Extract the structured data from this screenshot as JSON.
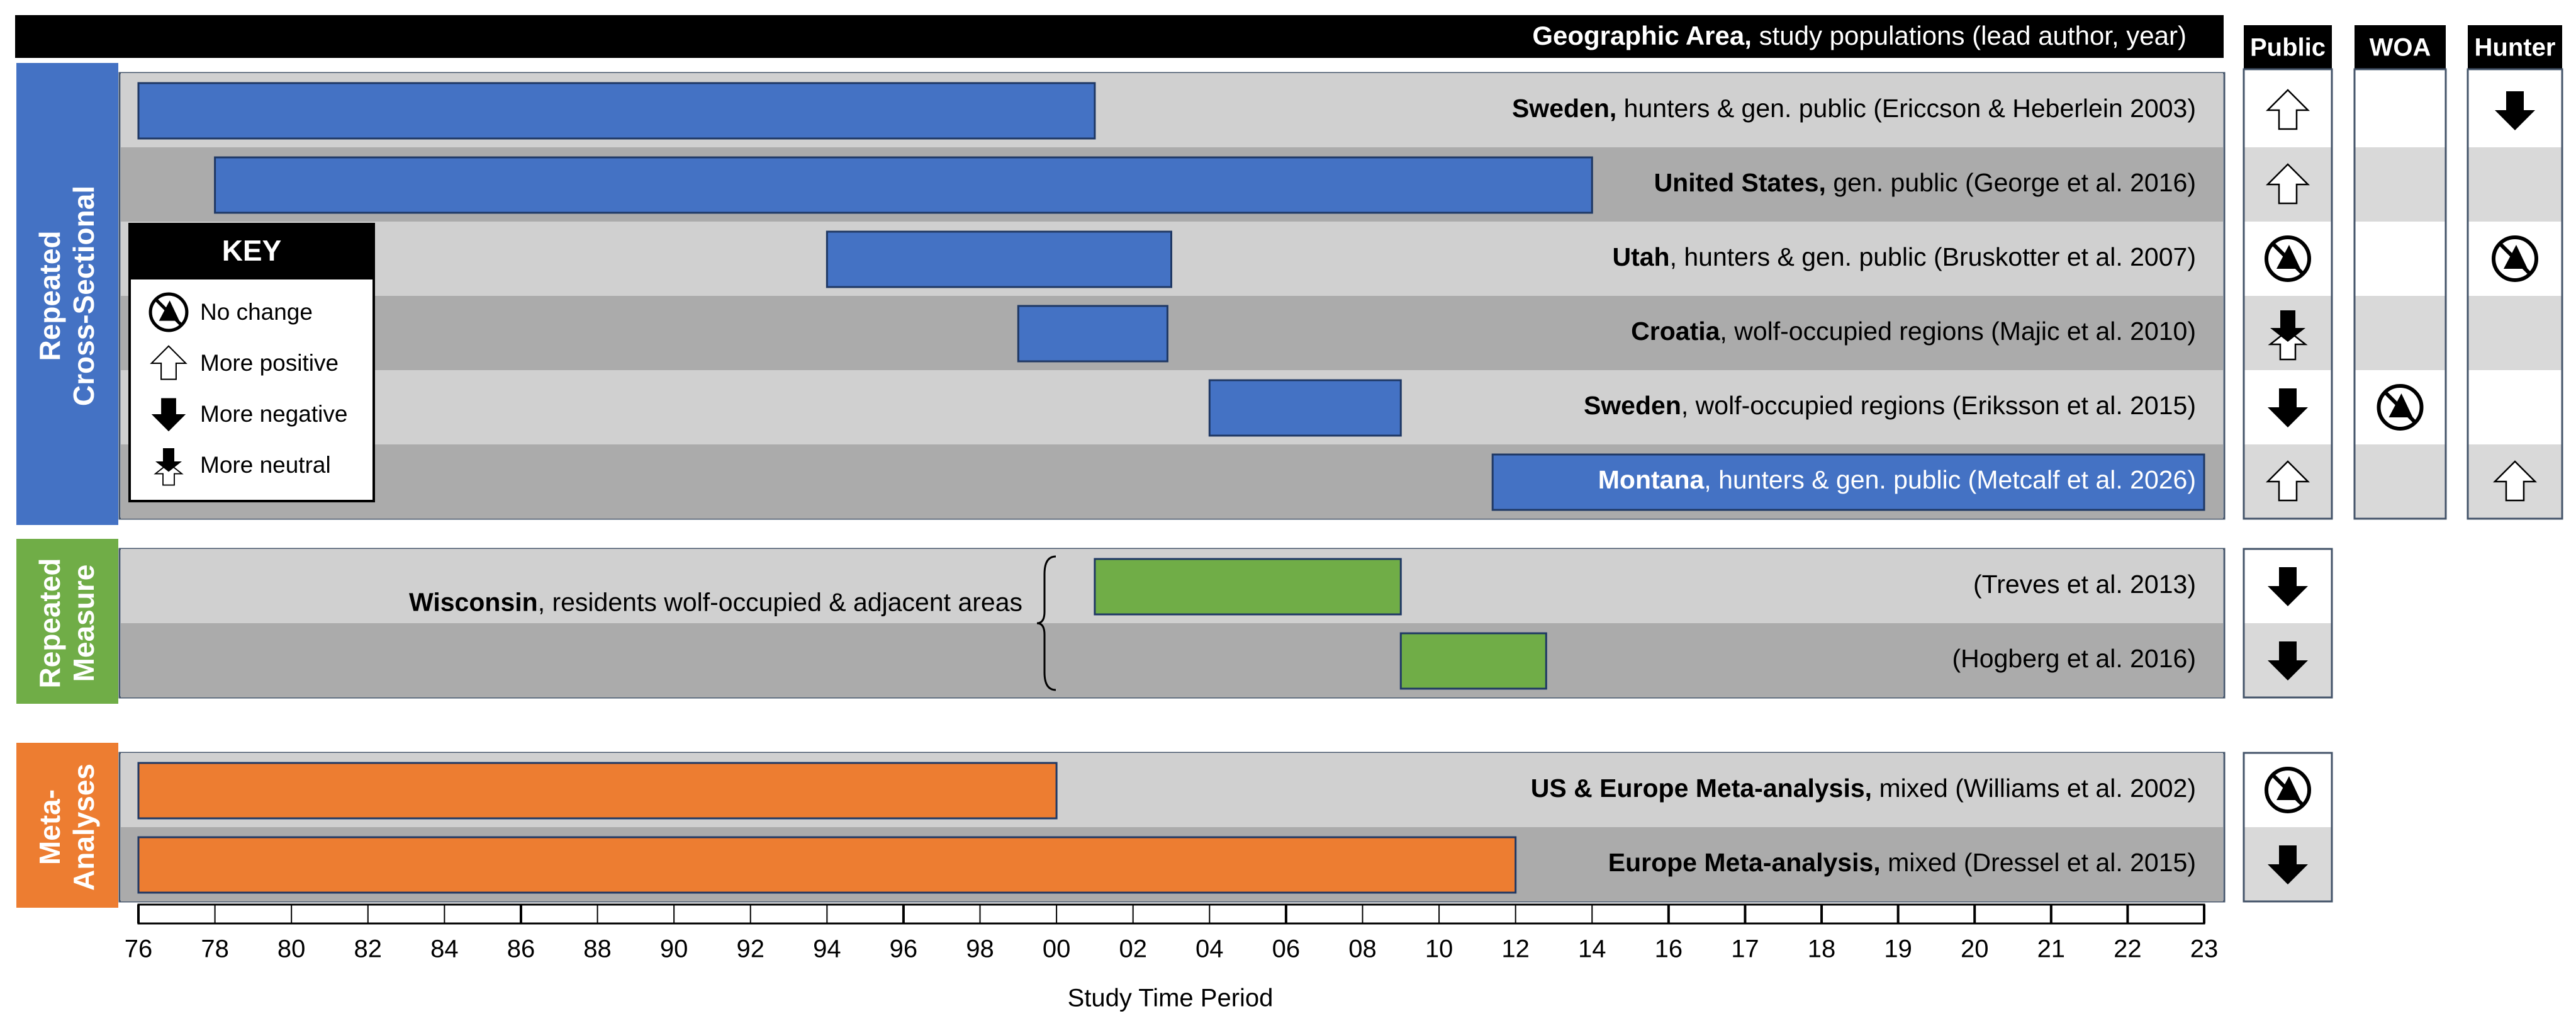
{
  "chart_data": {
    "type": "gantt",
    "title": "Geographic Area, study populations (lead author, year)",
    "title_bold": "Geographic Area,",
    "title_rest": " study populations (lead author, year)",
    "xlabel": "Study Time Period",
    "ticks": [
      "76",
      "78",
      "80",
      "82",
      "84",
      "86",
      "88",
      "90",
      "92",
      "94",
      "96",
      "98",
      "00",
      "02",
      "04",
      "06",
      "08",
      "10",
      "12",
      "14",
      "16",
      "17",
      "18",
      "19",
      "20",
      "21",
      "22",
      "23"
    ],
    "trend_columns": [
      "Public",
      "WOA",
      "Hunter"
    ],
    "trend_values": [
      "no_change",
      "more_positive",
      "more_negative",
      "more_neutral"
    ],
    "groups": [
      {
        "label": "Repeated Cross-Sectional",
        "label_lines": [
          "Repeated",
          "Cross-Sectional"
        ],
        "color": "#4472C4",
        "studies": [
          {
            "bold": "Sweden,",
            "rest": " hunters & gen. public (Ericcson & Heberlein 2003)",
            "start": 0,
            "end": 12.5,
            "public": "more_positive",
            "woa": null,
            "hunter": "more_negative"
          },
          {
            "bold": "United States,",
            "rest": " gen. public (George et al. 2016)",
            "start": 1,
            "end": 19,
            "public": "more_positive",
            "woa": null,
            "hunter": null
          },
          {
            "bold": "Utah",
            "rest": ", hunters & gen. public (Bruskotter et al. 2007)",
            "start": 9,
            "end": 13.5,
            "public": "no_change",
            "woa": null,
            "hunter": "no_change"
          },
          {
            "bold": "Croatia",
            "rest": ", wolf-occupied regions (Majic et al. 2010)",
            "start": 11.5,
            "end": 13.45,
            "public": "more_neutral",
            "woa": null,
            "hunter": null
          },
          {
            "bold": "Sweden",
            "rest": ", wolf-occupied regions (Eriksson et al. 2015)",
            "start": 14,
            "end": 16.5,
            "public": "more_negative",
            "woa": "no_change",
            "hunter": null
          },
          {
            "bold": "Montana",
            "rest": ", hunters & gen. public (Metcalf et al. 2026)",
            "start": 17.7,
            "end": 27,
            "public": "more_positive",
            "woa": null,
            "hunter": "more_positive",
            "label_in_bar": true
          }
        ]
      },
      {
        "label": "Repeated Measure",
        "label_lines": [
          "Repeated",
          "Measure"
        ],
        "color": "#70AD47",
        "bracket_bold": "Wisconsin",
        "bracket_rest": ", residents wolf-occupied & adjacent areas",
        "studies": [
          {
            "bold": "",
            "rest": "(Treves et al. 2013)",
            "start": 12.5,
            "end": 16.5,
            "public": "more_negative",
            "woa": null,
            "hunter": null
          },
          {
            "bold": "",
            "rest": "(Hogberg et al. 2016)",
            "start": 16.5,
            "end": 18.4,
            "public": "more_negative",
            "woa": null,
            "hunter": null
          }
        ]
      },
      {
        "label": "Meta-Analyses",
        "label_lines": [
          "Meta-",
          "Analyses"
        ],
        "color": "#ED7D31",
        "studies": [
          {
            "bold": "US & Europe Meta-analysis,",
            "rest": " mixed (Williams et al. 2002)",
            "start": 0,
            "end": 12,
            "public": "no_change",
            "woa": null,
            "hunter": null
          },
          {
            "bold": "Europe Meta-analysis,",
            "rest": " mixed (Dressel et al. 2015)",
            "start": 0,
            "end": 18,
            "public": "more_negative",
            "woa": null,
            "hunter": null
          }
        ]
      }
    ],
    "legend": {
      "title": "KEY",
      "items": [
        {
          "icon": "no_change",
          "label": "No change"
        },
        {
          "icon": "more_positive",
          "label": "More positive"
        },
        {
          "icon": "more_negative",
          "label": "More negative"
        },
        {
          "icon": "more_neutral",
          "label": "More neutral"
        }
      ]
    }
  }
}
